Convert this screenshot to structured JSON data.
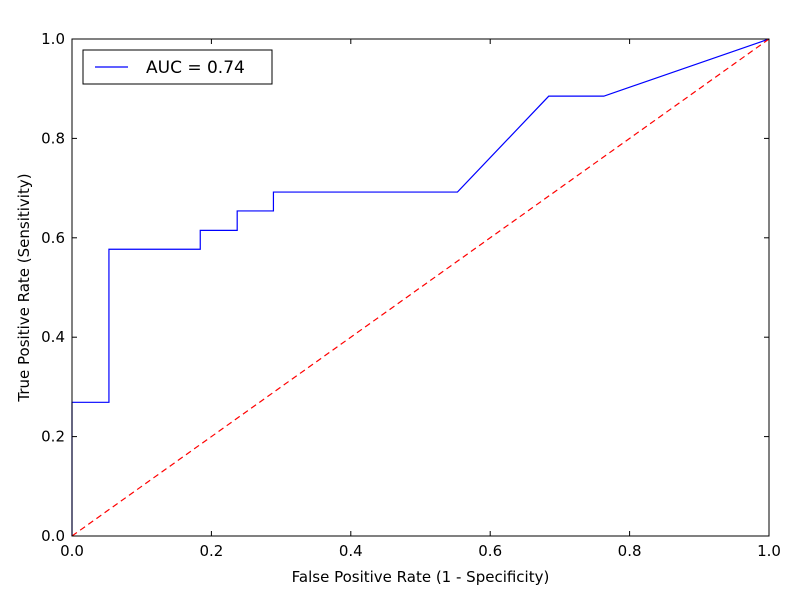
{
  "chart_data": {
    "type": "line",
    "title": "",
    "xlabel": "False Positive Rate (1 - Specificity)",
    "ylabel": "True Positive Rate (Sensitivity)",
    "xlim": [
      0.0,
      1.0
    ],
    "ylim": [
      0.0,
      1.0
    ],
    "xticks": [
      0.0,
      0.2,
      0.4,
      0.6,
      0.8,
      1.0
    ],
    "yticks": [
      0.0,
      0.2,
      0.4,
      0.6,
      0.8,
      1.0
    ],
    "xtick_labels": [
      "0.0",
      "0.2",
      "0.4",
      "0.6",
      "0.8",
      "1.0"
    ],
    "ytick_labels": [
      "0.0",
      "0.2",
      "0.4",
      "0.6",
      "0.8",
      "1.0"
    ],
    "grid": false,
    "legend_position": "top-left",
    "series": [
      {
        "name": "AUC = 0.74",
        "color": "#0000ff",
        "style": "solid",
        "x": [
          0.0,
          0.0,
          0.053,
          0.053,
          0.184,
          0.184,
          0.237,
          0.237,
          0.289,
          0.289,
          0.553,
          0.684,
          0.763,
          1.0
        ],
        "y": [
          0.0,
          0.269,
          0.269,
          0.577,
          0.577,
          0.615,
          0.615,
          0.654,
          0.654,
          0.692,
          0.692,
          0.885,
          0.885,
          1.0
        ]
      },
      {
        "color": "#ff0000",
        "style": "dashed",
        "x": [
          0.0,
          1.0
        ],
        "y": [
          0.0,
          1.0
        ]
      }
    ]
  }
}
